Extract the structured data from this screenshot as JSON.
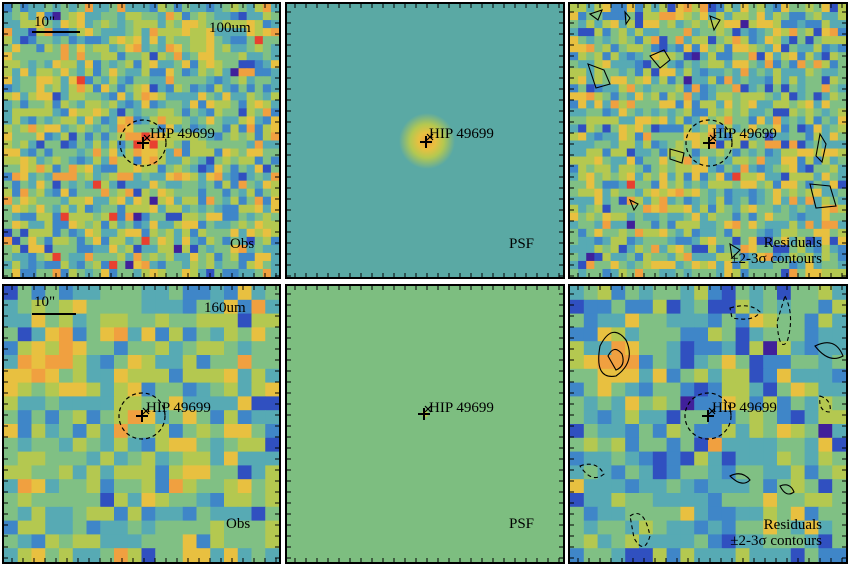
{
  "target": {
    "name": "HIP 49699"
  },
  "rows": [
    {
      "band": "100um",
      "scalebar": "10\"",
      "obs_label": "Obs",
      "psf_label": "PSF",
      "residuals_label": "Residuals",
      "contour_label": "±2-3σ contours",
      "psf_axis_ticks": [
        "30",
        "20",
        "10"
      ]
    },
    {
      "band": "160um",
      "scalebar": "10\"",
      "obs_label": "Obs",
      "psf_label": "PSF",
      "residuals_label": "Residuals",
      "contour_label": "±2-3σ contours",
      "psf_axis_ticks": [
        "20",
        "15",
        "10",
        "5",
        "0"
      ]
    }
  ],
  "colors": {
    "colormap": [
      "#40209a",
      "#3050c0",
      "#3f86c8",
      "#57aab4",
      "#80c084",
      "#b4c850",
      "#e8c040",
      "#f0a040",
      "#e84030"
    ],
    "psf_background_100": "#5aa9a4",
    "psf_background_160": "#7dbe80"
  }
}
